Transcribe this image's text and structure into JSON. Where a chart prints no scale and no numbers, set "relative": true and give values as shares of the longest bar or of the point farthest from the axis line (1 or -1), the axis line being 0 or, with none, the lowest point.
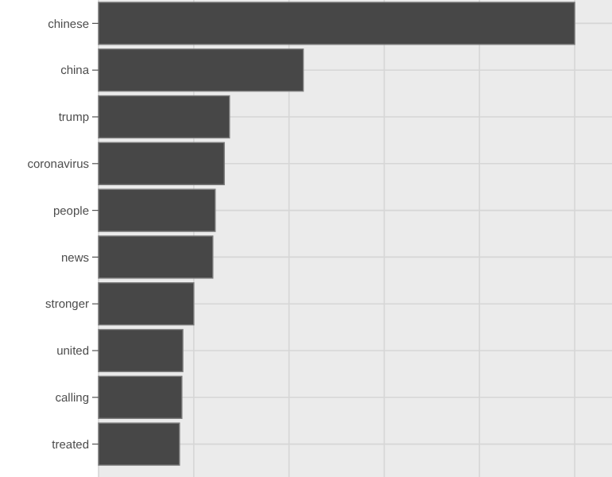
{
  "chart_data": {
    "type": "bar",
    "orientation": "horizontal",
    "relative": true,
    "categories": [
      "chinese",
      "china",
      "trump",
      "coronavirus",
      "people",
      "news",
      "stronger",
      "united",
      "calling",
      "treated"
    ],
    "values": [
      1,
      0.43,
      0.275,
      0.264,
      0.245,
      0.24,
      0.2,
      0.177,
      0.175,
      0.17
    ],
    "color": "#474747",
    "grid": true
  }
}
